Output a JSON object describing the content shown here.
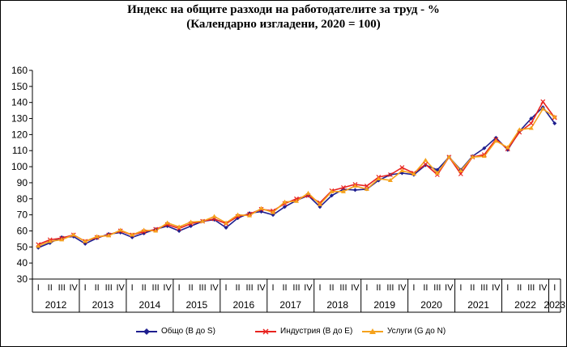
{
  "chart_data": {
    "type": "line",
    "title": "Индекс на общите разходи на работодателите за труд - %",
    "subtitle": "(Календарно изгладени, 2020 = 100)",
    "ylim": [
      30,
      160
    ],
    "yticks": [
      30,
      40,
      50,
      60,
      70,
      80,
      90,
      100,
      110,
      120,
      130,
      140,
      150,
      160
    ],
    "grid": false,
    "legend_position": "bottom",
    "quarters": [
      "I",
      "II",
      "III",
      "IV",
      "I",
      "II",
      "III",
      "IV",
      "I",
      "II",
      "III",
      "IV",
      "I",
      "II",
      "III",
      "IV",
      "I",
      "II",
      "III",
      "IV",
      "I",
      "II",
      "III",
      "IV",
      "I",
      "II",
      "III",
      "IV",
      "I",
      "II",
      "III",
      "IV",
      "I",
      "II",
      "III",
      "IV",
      "I",
      "II",
      "III",
      "IV",
      "I",
      "II",
      "III",
      "IV",
      "I"
    ],
    "years": [
      "2012",
      "2013",
      "2014",
      "2015",
      "2016",
      "2017",
      "2018",
      "2019",
      "2020",
      "2021",
      "2022",
      "2023"
    ],
    "series": [
      {
        "name": "Общо (B до S)",
        "color": "#1f1f8f",
        "marker": "diamond",
        "values": [
          49.5,
          52.5,
          56,
          56.5,
          52,
          55.5,
          58,
          59,
          56,
          58.5,
          61,
          63,
          60,
          63,
          66,
          67,
          62,
          68,
          71,
          72,
          70,
          75,
          79,
          82,
          75,
          82,
          86,
          85.5,
          86,
          91.5,
          95,
          96,
          95,
          101,
          98,
          106,
          98,
          106.5,
          111.5,
          118,
          110.5,
          122,
          130,
          137,
          127
        ]
      },
      {
        "name": "Индустрия (B до E)",
        "color": "#e8231f",
        "marker": "x",
        "values": [
          51.5,
          54.5,
          55.5,
          57.5,
          53.5,
          56,
          57.5,
          60,
          57.5,
          59.5,
          61,
          64,
          61.5,
          64.5,
          66,
          67.5,
          64.5,
          69,
          70.5,
          73.5,
          72.5,
          77,
          80,
          82,
          77.5,
          85,
          87,
          89,
          88,
          93.5,
          95,
          99.5,
          96,
          101.5,
          95,
          106,
          95.5,
          106,
          107.5,
          117,
          111,
          121.5,
          127,
          140.5,
          130.5
        ]
      },
      {
        "name": "Услуги (G до N)",
        "color": "#f5a21c",
        "marker": "triangle",
        "values": [
          50.5,
          53.5,
          54.5,
          57.5,
          53.5,
          56.5,
          57,
          60.5,
          57.5,
          60.5,
          60,
          65,
          62.5,
          65.5,
          66,
          69,
          65,
          70,
          69.5,
          74,
          71.5,
          78,
          78.5,
          83.5,
          76.5,
          84.5,
          84.5,
          88,
          86,
          92.5,
          91.5,
          97.5,
          95.5,
          104,
          96,
          106,
          97.5,
          106,
          106.5,
          116,
          112,
          123,
          124,
          136,
          131
        ]
      }
    ]
  }
}
